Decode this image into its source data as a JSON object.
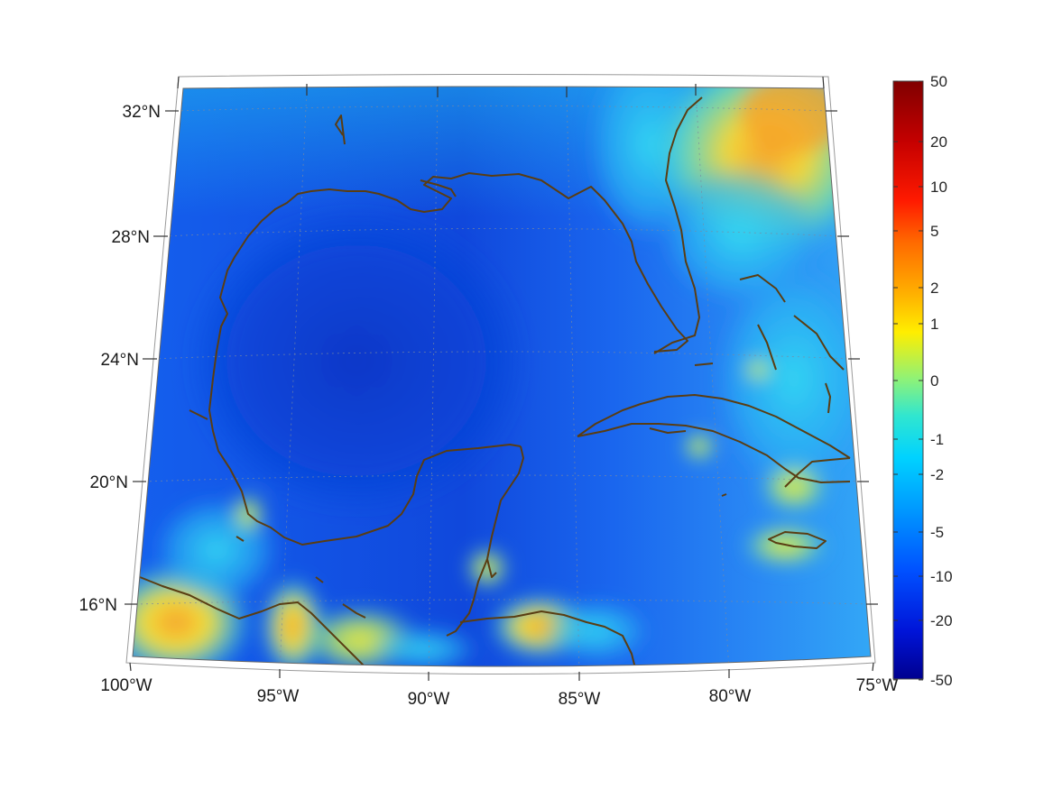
{
  "map": {
    "projection": "conic",
    "lon_range": [
      -100,
      -75
    ],
    "lat_range": [
      14,
      33
    ],
    "grid_lines": "dotted",
    "coastline_color": "#5a3d12",
    "field_description_colors": {
      "gulf_deep": "#0a3fd6",
      "open_ocean": "#1d6cf0",
      "cyan": "#22c8f0",
      "yellow": "#f3e83a",
      "orange": "#f5a623"
    }
  },
  "axes": {
    "lon_ticks": [
      {
        "value": -100,
        "label": "100°W"
      },
      {
        "value": -95,
        "label": "95°W"
      },
      {
        "value": -90,
        "label": "90°W"
      },
      {
        "value": -85,
        "label": "85°W"
      },
      {
        "value": -80,
        "label": "80°W"
      },
      {
        "value": -75,
        "label": "75°W"
      }
    ],
    "lat_ticks": [
      {
        "value": 32,
        "label": "32°N"
      },
      {
        "value": 28,
        "label": "28°N"
      },
      {
        "value": 24,
        "label": "24°N"
      },
      {
        "value": 20,
        "label": "20°N"
      },
      {
        "value": 16,
        "label": "16°N"
      }
    ]
  },
  "colorbar": {
    "colormap": "jet",
    "ticks": [
      "50",
      "20",
      "10",
      "5",
      "2",
      "1",
      "0",
      "-1",
      "-2",
      "-5",
      "-10",
      "-20",
      "-50"
    ],
    "colors": {
      "top": "#800000",
      "bottom": "#00008f"
    }
  }
}
